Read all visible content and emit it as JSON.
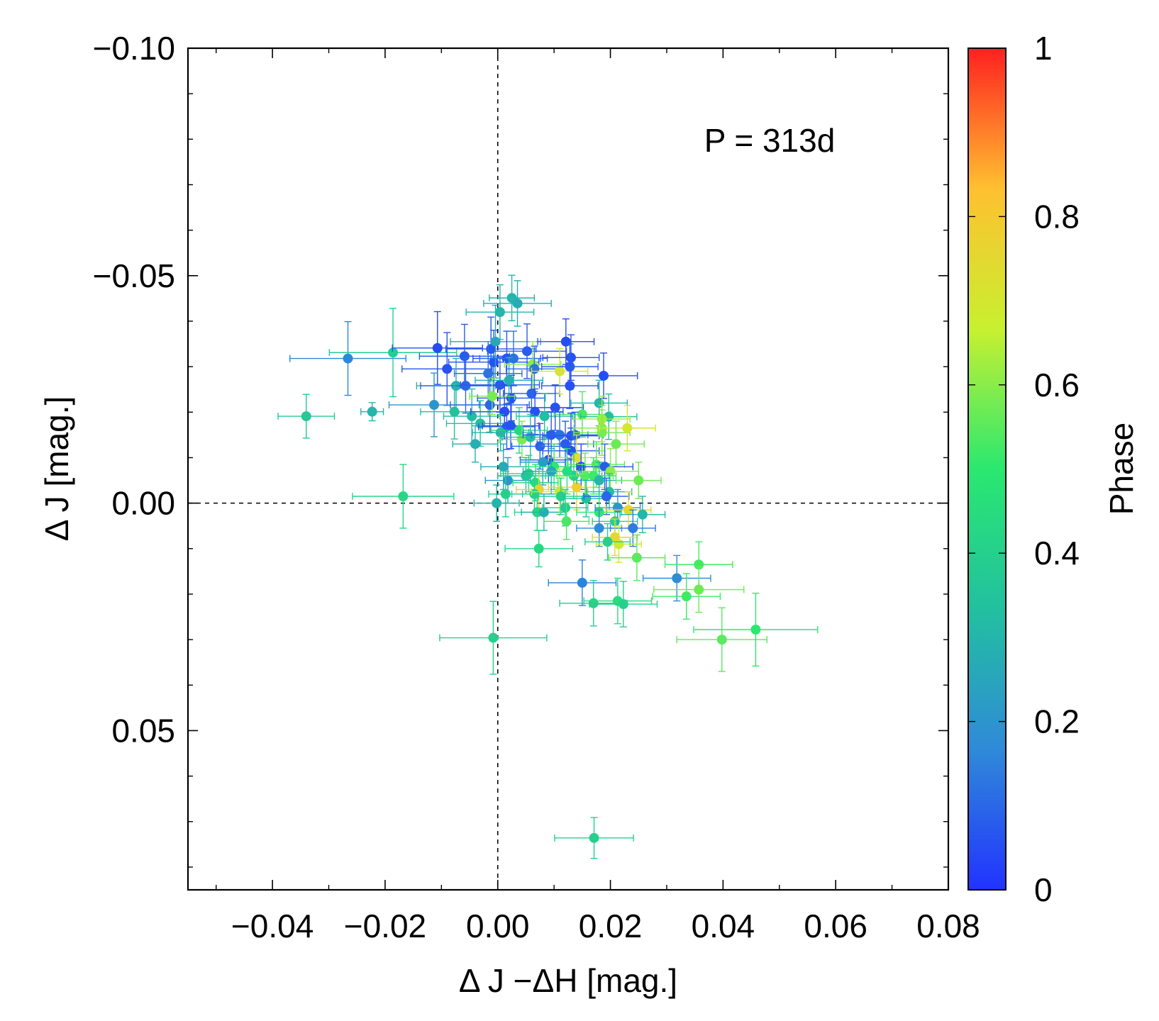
{
  "chart_data": {
    "type": "scatter",
    "annotation": "P = 313d",
    "xlabel": "Δ J −ΔH  [mag.]",
    "ylabel": "Δ J [mag.]",
    "xlim": [
      -0.055,
      0.08
    ],
    "ylim": [
      -0.1,
      0.085
    ],
    "y_inverted": true,
    "x_ticks": [
      {
        "value": -0.04,
        "label": "−0.04"
      },
      {
        "value": -0.02,
        "label": "−0.02"
      },
      {
        "value": 0.0,
        "label": "0.00"
      },
      {
        "value": 0.02,
        "label": "0.02"
      },
      {
        "value": 0.04,
        "label": "0.04"
      },
      {
        "value": 0.06,
        "label": "0.06"
      },
      {
        "value": 0.08,
        "label": "0.08"
      }
    ],
    "y_ticks": [
      {
        "value": -0.1,
        "label": "−0.10"
      },
      {
        "value": -0.05,
        "label": "−0.05"
      },
      {
        "value": 0.0,
        "label": "0.00"
      },
      {
        "value": 0.05,
        "label": "0.05"
      }
    ],
    "reference_lines": {
      "x": 0,
      "y": 0,
      "style": "dashed"
    },
    "colorbar": {
      "label": "Phase",
      "range": [
        0,
        1
      ],
      "ticks": [
        {
          "value": 0,
          "label": "0"
        },
        {
          "value": 0.2,
          "label": "0.2"
        },
        {
          "value": 0.4,
          "label": "0.4"
        },
        {
          "value": 0.6,
          "label": "0.6"
        },
        {
          "value": 0.8,
          "label": "0.8"
        },
        {
          "value": 1,
          "label": "1"
        }
      ],
      "colors": [
        "#2233ff",
        "#2f8ad8",
        "#22c0a0",
        "#2ae870",
        "#c8f030",
        "#ffc030",
        "#ff2020"
      ]
    },
    "points": [
      {
        "x": -0.0266,
        "y": -0.0318,
        "xerr": 0.0103,
        "yerr": 0.0081,
        "phase": 0.16
      },
      {
        "x": -0.0186,
        "y": -0.0331,
        "xerr": 0.0113,
        "yerr": 0.0097,
        "phase": 0.39
      },
      {
        "x": -0.034,
        "y": -0.0191,
        "xerr": 0.005,
        "yerr": 0.0048,
        "phase": 0.37
      },
      {
        "x": -0.0223,
        "y": -0.0201,
        "xerr": 0.002,
        "yerr": 0.002,
        "phase": 0.3
      },
      {
        "x": -0.0168,
        "y": -0.0015,
        "xerr": 0.009,
        "yerr": 0.007,
        "phase": 0.43
      },
      {
        "x": -0.0107,
        "y": -0.0341,
        "xerr": 0.008,
        "yerr": 0.008,
        "phase": 0.05
      },
      {
        "x": -0.009,
        "y": -0.0295,
        "xerr": 0.008,
        "yerr": 0.008,
        "phase": 0.06
      },
      {
        "x": -0.0074,
        "y": -0.0258,
        "xerr": 0.007,
        "yerr": 0.006,
        "phase": 0.28
      },
      {
        "x": -0.0059,
        "y": -0.0323,
        "xerr": 0.008,
        "yerr": 0.007,
        "phase": 0.08
      },
      {
        "x": -0.0057,
        "y": -0.0258,
        "xerr": 0.008,
        "yerr": 0.006,
        "phase": 0.1
      },
      {
        "x": -0.0113,
        "y": -0.0216,
        "xerr": 0.008,
        "yerr": 0.007,
        "phase": 0.2
      },
      {
        "x": -0.0077,
        "y": -0.0201,
        "xerr": 0.006,
        "yerr": 0.006,
        "phase": 0.34
      },
      {
        "x": -0.0046,
        "y": -0.0191,
        "xerr": 0.005,
        "yerr": 0.006,
        "phase": 0.32
      },
      {
        "x": -0.0031,
        "y": -0.0175,
        "xerr": 0.006,
        "yerr": 0.005,
        "phase": 0.33
      },
      {
        "x": -0.004,
        "y": -0.013,
        "xerr": 0.004,
        "yerr": 0.004,
        "phase": 0.28
      },
      {
        "x": -0.0012,
        "y": -0.0339,
        "xerr": 0.008,
        "yerr": 0.007,
        "phase": 0.07
      },
      {
        "x": -0.0007,
        "y": -0.031,
        "xerr": 0.008,
        "yerr": 0.007,
        "phase": 0.06
      },
      {
        "x": -0.0017,
        "y": -0.0285,
        "xerr": 0.006,
        "yerr": 0.007,
        "phase": 0.12
      },
      {
        "x": -0.0004,
        "y": -0.0355,
        "xerr": 0.008,
        "yerr": 0.008,
        "phase": 0.25
      },
      {
        "x": 0.0004,
        "y": -0.042,
        "xerr": 0.006,
        "yerr": 0.006,
        "phase": 0.3
      },
      {
        "x": 0.0025,
        "y": -0.0451,
        "xerr": 0.004,
        "yerr": 0.005,
        "phase": 0.3
      },
      {
        "x": 0.0035,
        "y": -0.0439,
        "xerr": 0.006,
        "yerr": 0.005,
        "phase": 0.27
      },
      {
        "x": 0.0016,
        "y": -0.0318,
        "xerr": 0.006,
        "yerr": 0.006,
        "phase": 0.06
      },
      {
        "x": 0.0028,
        "y": -0.0318,
        "xerr": 0.006,
        "yerr": 0.006,
        "phase": 0.12
      },
      {
        "x": 0.0004,
        "y": -0.026,
        "xerr": 0.007,
        "yerr": 0.006,
        "phase": 0.07
      },
      {
        "x": -0.0014,
        "y": -0.0216,
        "xerr": 0.007,
        "yerr": 0.006,
        "phase": 0.1
      },
      {
        "x": 0.0012,
        "y": -0.0201,
        "xerr": 0.006,
        "yerr": 0.006,
        "phase": 0.05
      },
      {
        "x": 0.0024,
        "y": -0.0231,
        "xerr": 0.006,
        "yerr": 0.005,
        "phase": 0.06
      },
      {
        "x": 0.002,
        "y": -0.027,
        "xerr": 0.006,
        "yerr": 0.005,
        "phase": 0.28
      },
      {
        "x": 0.0016,
        "y": -0.0168,
        "xerr": 0.005,
        "yerr": 0.005,
        "phase": 0.08
      },
      {
        "x": 0.0023,
        "y": -0.017,
        "xerr": 0.005,
        "yerr": 0.005,
        "phase": 0.06
      },
      {
        "x": -0.001,
        "y": -0.0235,
        "xerr": 0.004,
        "yerr": 0.004,
        "phase": 0.58
      },
      {
        "x": 0.0005,
        "y": -0.0155,
        "xerr": 0.005,
        "yerr": 0.004,
        "phase": 0.3
      },
      {
        "x": 0.001,
        "y": -0.008,
        "xerr": 0.004,
        "yerr": 0.005,
        "phase": 0.27
      },
      {
        "x": 0.0018,
        "y": -0.005,
        "xerr": 0.004,
        "yerr": 0.005,
        "phase": 0.2
      },
      {
        "x": 0.0014,
        "y": -0.002,
        "xerr": 0.003,
        "yerr": 0.005,
        "phase": 0.4
      },
      {
        "x": -0.0002,
        "y": 0.0,
        "xerr": 0.004,
        "yerr": 0.004,
        "phase": 0.3
      },
      {
        "x": 0.0038,
        "y": -0.016,
        "xerr": 0.005,
        "yerr": 0.005,
        "phase": 0.42
      },
      {
        "x": 0.0043,
        "y": -0.014,
        "xerr": 0.004,
        "yerr": 0.004,
        "phase": 0.58
      },
      {
        "x": 0.0052,
        "y": -0.0334,
        "xerr": 0.007,
        "yerr": 0.006,
        "phase": 0.08
      },
      {
        "x": 0.0062,
        "y": -0.0305,
        "xerr": 0.005,
        "yerr": 0.005,
        "phase": 0.6
      },
      {
        "x": 0.0065,
        "y": -0.0295,
        "xerr": 0.005,
        "yerr": 0.005,
        "phase": 0.12
      },
      {
        "x": 0.006,
        "y": -0.0241,
        "xerr": 0.005,
        "yerr": 0.005,
        "phase": 0.1
      },
      {
        "x": 0.0066,
        "y": -0.0201,
        "xerr": 0.005,
        "yerr": 0.005,
        "phase": 0.06
      },
      {
        "x": 0.0083,
        "y": -0.0191,
        "xerr": 0.005,
        "yerr": 0.005,
        "phase": 0.33
      },
      {
        "x": 0.0058,
        "y": -0.0145,
        "xerr": 0.005,
        "yerr": 0.005,
        "phase": 0.32
      },
      {
        "x": 0.0075,
        "y": -0.0125,
        "xerr": 0.005,
        "yerr": 0.005,
        "phase": 0.1
      },
      {
        "x": 0.009,
        "y": -0.0095,
        "xerr": 0.005,
        "yerr": 0.005,
        "phase": 0.07
      },
      {
        "x": 0.008,
        "y": -0.009,
        "xerr": 0.004,
        "yerr": 0.005,
        "phase": 0.22
      },
      {
        "x": 0.0055,
        "y": -0.0065,
        "xerr": 0.005,
        "yerr": 0.004,
        "phase": 0.42
      },
      {
        "x": 0.005,
        "y": -0.006,
        "xerr": 0.005,
        "yerr": 0.004,
        "phase": 0.36
      },
      {
        "x": 0.0067,
        "y": -0.0045,
        "xerr": 0.004,
        "yerr": 0.004,
        "phase": 0.45
      },
      {
        "x": 0.0073,
        "y": -0.003,
        "xerr": 0.004,
        "yerr": 0.004,
        "phase": 0.78
      },
      {
        "x": 0.0065,
        "y": -0.002,
        "xerr": 0.004,
        "yerr": 0.004,
        "phase": 0.4
      },
      {
        "x": 0.007,
        "y": 0.002,
        "xerr": 0.004,
        "yerr": 0.004,
        "phase": 0.42
      },
      {
        "x": 0.0082,
        "y": 0.002,
        "xerr": 0.004,
        "yerr": 0.004,
        "phase": 0.28
      },
      {
        "x": 0.0102,
        "y": -0.021,
        "xerr": 0.005,
        "yerr": 0.005,
        "phase": 0.06
      },
      {
        "x": 0.011,
        "y": -0.029,
        "xerr": 0.005,
        "yerr": 0.005,
        "phase": 0.7
      },
      {
        "x": 0.0121,
        "y": -0.0355,
        "xerr": 0.005,
        "yerr": 0.005,
        "phase": 0.05
      },
      {
        "x": 0.013,
        "y": -0.032,
        "xerr": 0.005,
        "yerr": 0.005,
        "phase": 0.06
      },
      {
        "x": 0.0128,
        "y": -0.03,
        "xerr": 0.005,
        "yerr": 0.005,
        "phase": 0.08
      },
      {
        "x": 0.0128,
        "y": -0.0258,
        "xerr": 0.005,
        "yerr": 0.005,
        "phase": 0.06
      },
      {
        "x": 0.015,
        "y": -0.0195,
        "xerr": 0.005,
        "yerr": 0.005,
        "phase": 0.53
      },
      {
        "x": 0.0095,
        "y": -0.015,
        "xerr": 0.005,
        "yerr": 0.005,
        "phase": 0.08
      },
      {
        "x": 0.011,
        "y": -0.015,
        "xerr": 0.005,
        "yerr": 0.005,
        "phase": 0.12
      },
      {
        "x": 0.013,
        "y": -0.0148,
        "xerr": 0.005,
        "yerr": 0.005,
        "phase": 0.06
      },
      {
        "x": 0.0137,
        "y": -0.015,
        "xerr": 0.005,
        "yerr": 0.005,
        "phase": 0.1
      },
      {
        "x": 0.012,
        "y": -0.013,
        "xerr": 0.005,
        "yerr": 0.005,
        "phase": 0.08
      },
      {
        "x": 0.013,
        "y": -0.0115,
        "xerr": 0.005,
        "yerr": 0.005,
        "phase": 0.06
      },
      {
        "x": 0.014,
        "y": -0.01,
        "xerr": 0.005,
        "yerr": 0.005,
        "phase": 0.72
      },
      {
        "x": 0.0148,
        "y": -0.008,
        "xerr": 0.005,
        "yerr": 0.005,
        "phase": 0.04
      },
      {
        "x": 0.01,
        "y": -0.008,
        "xerr": 0.005,
        "yerr": 0.005,
        "phase": 0.5
      },
      {
        "x": 0.0095,
        "y": -0.007,
        "xerr": 0.005,
        "yerr": 0.005,
        "phase": 0.25
      },
      {
        "x": 0.0123,
        "y": -0.007,
        "xerr": 0.005,
        "yerr": 0.005,
        "phase": 0.45
      },
      {
        "x": 0.0135,
        "y": -0.006,
        "xerr": 0.005,
        "yerr": 0.005,
        "phase": 0.4
      },
      {
        "x": 0.0155,
        "y": -0.006,
        "xerr": 0.005,
        "yerr": 0.005,
        "phase": 0.55
      },
      {
        "x": 0.014,
        "y": -0.0035,
        "xerr": 0.005,
        "yerr": 0.005,
        "phase": 0.78
      },
      {
        "x": 0.011,
        "y": -0.0025,
        "xerr": 0.005,
        "yerr": 0.005,
        "phase": 0.65
      },
      {
        "x": 0.0112,
        "y": -0.0015,
        "xerr": 0.004,
        "yerr": 0.004,
        "phase": 0.4
      },
      {
        "x": 0.0157,
        "y": -0.001,
        "xerr": 0.004,
        "yerr": 0.004,
        "phase": 0.33
      },
      {
        "x": 0.012,
        "y": 0.001,
        "xerr": 0.004,
        "yerr": 0.004,
        "phase": 0.38
      },
      {
        "x": 0.0122,
        "y": 0.004,
        "xerr": 0.004,
        "yerr": 0.004,
        "phase": 0.53
      },
      {
        "x": 0.018,
        "y": -0.022,
        "xerr": 0.005,
        "yerr": 0.005,
        "phase": 0.3
      },
      {
        "x": 0.0188,
        "y": -0.028,
        "xerr": 0.006,
        "yerr": 0.005,
        "phase": 0.05
      },
      {
        "x": 0.0197,
        "y": -0.019,
        "xerr": 0.005,
        "yerr": 0.005,
        "phase": 0.33
      },
      {
        "x": 0.0185,
        "y": -0.0185,
        "xerr": 0.005,
        "yerr": 0.005,
        "phase": 0.62
      },
      {
        "x": 0.0185,
        "y": -0.0165,
        "xerr": 0.005,
        "yerr": 0.005,
        "phase": 0.6
      },
      {
        "x": 0.0185,
        "y": -0.0155,
        "xerr": 0.005,
        "yerr": 0.005,
        "phase": 0.58
      },
      {
        "x": 0.023,
        "y": -0.0165,
        "xerr": 0.005,
        "yerr": 0.005,
        "phase": 0.7
      },
      {
        "x": 0.021,
        "y": -0.013,
        "xerr": 0.005,
        "yerr": 0.005,
        "phase": 0.57
      },
      {
        "x": 0.0175,
        "y": -0.0085,
        "xerr": 0.005,
        "yerr": 0.005,
        "phase": 0.55
      },
      {
        "x": 0.019,
        "y": -0.008,
        "xerr": 0.005,
        "yerr": 0.005,
        "phase": 0.08
      },
      {
        "x": 0.02,
        "y": -0.007,
        "xerr": 0.005,
        "yerr": 0.005,
        "phase": 0.6
      },
      {
        "x": 0.017,
        "y": -0.006,
        "xerr": 0.004,
        "yerr": 0.004,
        "phase": 0.52
      },
      {
        "x": 0.018,
        "y": -0.005,
        "xerr": 0.004,
        "yerr": 0.004,
        "phase": 0.3
      },
      {
        "x": 0.0198,
        "y": -0.0025,
        "xerr": 0.004,
        "yerr": 0.004,
        "phase": 0.33
      },
      {
        "x": 0.0193,
        "y": -0.0015,
        "xerr": 0.004,
        "yerr": 0.004,
        "phase": 0.1
      },
      {
        "x": 0.018,
        "y": 0.002,
        "xerr": 0.004,
        "yerr": 0.004,
        "phase": 0.5
      },
      {
        "x": 0.0208,
        "y": 0.004,
        "xerr": 0.004,
        "yerr": 0.004,
        "phase": 0.4
      },
      {
        "x": 0.0213,
        "y": 0.001,
        "xerr": 0.004,
        "yerr": 0.004,
        "phase": 0.2
      },
      {
        "x": 0.0232,
        "y": 0.0015,
        "xerr": 0.004,
        "yerr": 0.004,
        "phase": 0.75
      },
      {
        "x": 0.0257,
        "y": 0.0025,
        "xerr": 0.004,
        "yerr": 0.004,
        "phase": 0.3
      },
      {
        "x": 0.025,
        "y": -0.005,
        "xerr": 0.004,
        "yerr": 0.004,
        "phase": 0.57
      },
      {
        "x": 0.018,
        "y": 0.0055,
        "xerr": 0.004,
        "yerr": 0.004,
        "phase": 0.18
      },
      {
        "x": 0.024,
        "y": 0.0055,
        "xerr": 0.004,
        "yerr": 0.004,
        "phase": 0.14
      },
      {
        "x": 0.0215,
        "y": 0.009,
        "xerr": 0.004,
        "yerr": 0.004,
        "phase": 0.68
      },
      {
        "x": 0.0208,
        "y": 0.0075,
        "xerr": 0.004,
        "yerr": 0.004,
        "phase": 0.75
      },
      {
        "x": 0.0195,
        "y": 0.0085,
        "xerr": 0.004,
        "yerr": 0.004,
        "phase": 0.4
      },
      {
        "x": 0.0247,
        "y": 0.012,
        "xerr": 0.005,
        "yerr": 0.005,
        "phase": 0.55
      },
      {
        "x": 0.0073,
        "y": 0.01,
        "xerr": 0.006,
        "yerr": 0.004,
        "phase": 0.43
      },
      {
        "x": 0.015,
        "y": 0.0175,
        "xerr": 0.006,
        "yerr": 0.005,
        "phase": 0.15
      },
      {
        "x": 0.017,
        "y": 0.022,
        "xerr": 0.006,
        "yerr": 0.005,
        "phase": 0.4
      },
      {
        "x": 0.0213,
        "y": 0.0215,
        "xerr": 0.006,
        "yerr": 0.005,
        "phase": 0.45
      },
      {
        "x": 0.0223,
        "y": 0.0222,
        "xerr": 0.006,
        "yerr": 0.005,
        "phase": 0.4
      },
      {
        "x": 0.0318,
        "y": 0.0165,
        "xerr": 0.006,
        "yerr": 0.005,
        "phase": 0.18
      },
      {
        "x": 0.0335,
        "y": 0.0205,
        "xerr": 0.006,
        "yerr": 0.005,
        "phase": 0.52
      },
      {
        "x": 0.0357,
        "y": 0.0135,
        "xerr": 0.006,
        "yerr": 0.005,
        "phase": 0.53
      },
      {
        "x": 0.0357,
        "y": 0.019,
        "xerr": 0.008,
        "yerr": 0.005,
        "phase": 0.57
      },
      {
        "x": 0.0398,
        "y": 0.03,
        "xerr": 0.008,
        "yerr": 0.007,
        "phase": 0.55
      },
      {
        "x": 0.0458,
        "y": 0.0278,
        "xerr": 0.011,
        "yerr": 0.008,
        "phase": 0.5
      },
      {
        "x": -0.0008,
        "y": 0.0296,
        "xerr": 0.0095,
        "yerr": 0.008,
        "phase": 0.4
      },
      {
        "x": 0.0171,
        "y": 0.0736,
        "xerr": 0.007,
        "yerr": 0.0045,
        "phase": 0.4
      }
    ]
  }
}
